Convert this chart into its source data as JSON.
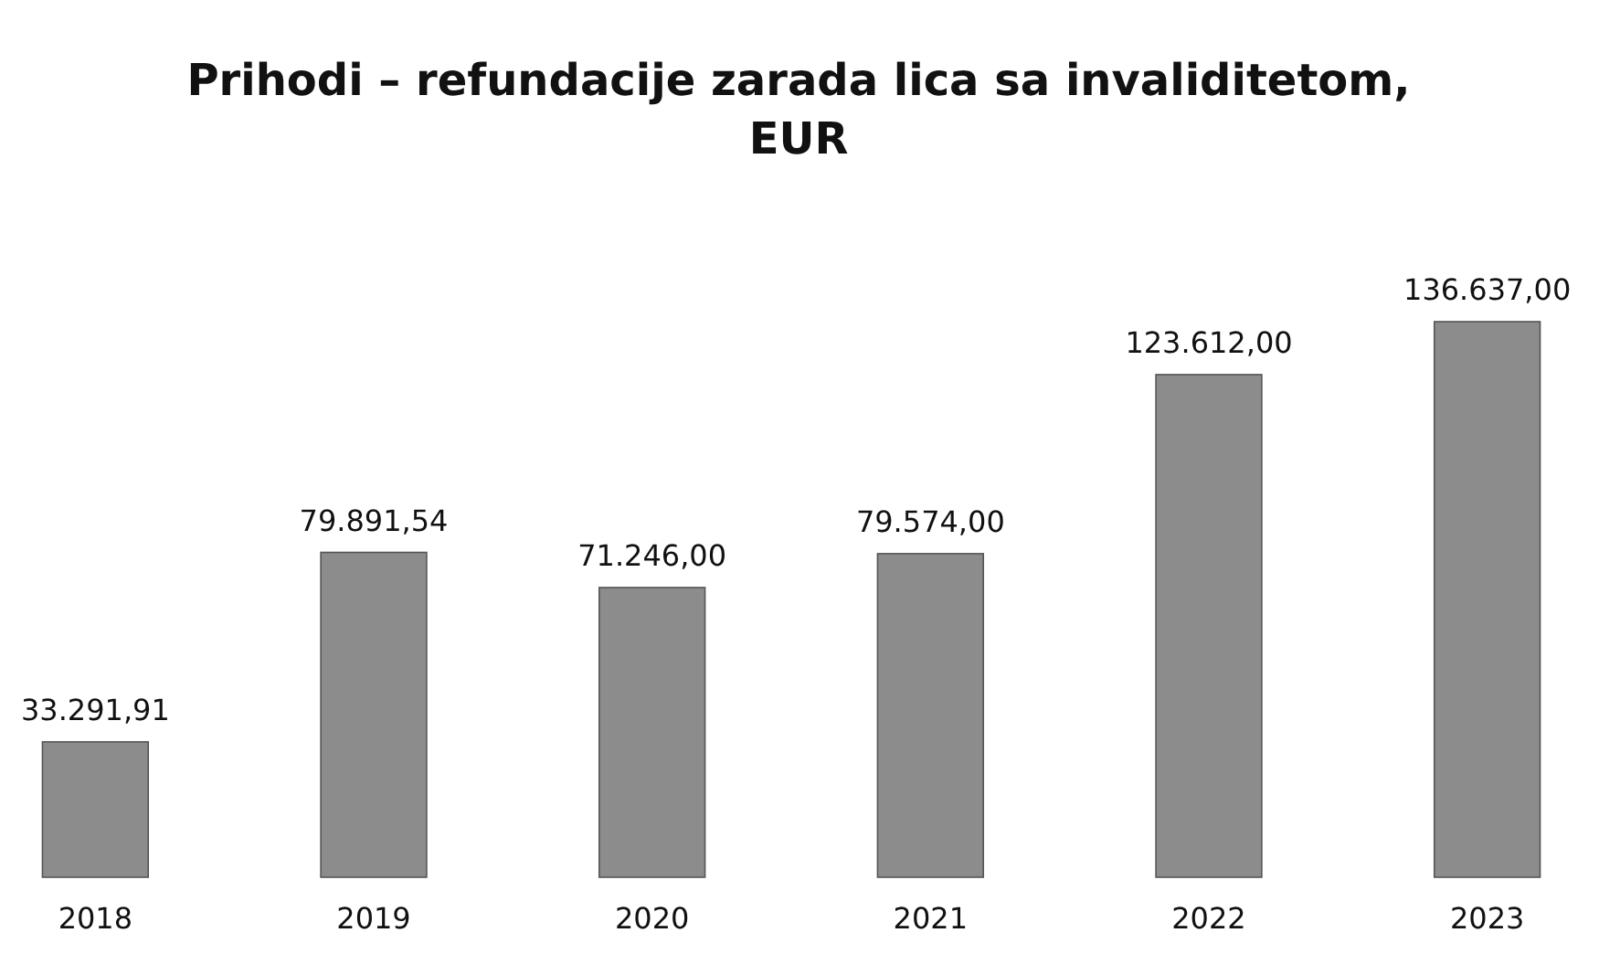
{
  "chart_data": {
    "type": "bar",
    "title": "Prihodi – refundacije zarada lica sa invaliditetom, EUR",
    "categories": [
      "2018",
      "2019",
      "2020",
      "2021",
      "2022",
      "2023"
    ],
    "values": [
      33291.91,
      79891.54,
      71246,
      79574,
      123612,
      136637
    ],
    "value_labels": [
      "33.291,91",
      "79.891,54",
      "71.246,00",
      "79.574,00",
      "123.612,00",
      "136.637,00"
    ],
    "color": "#8c8c8c"
  }
}
